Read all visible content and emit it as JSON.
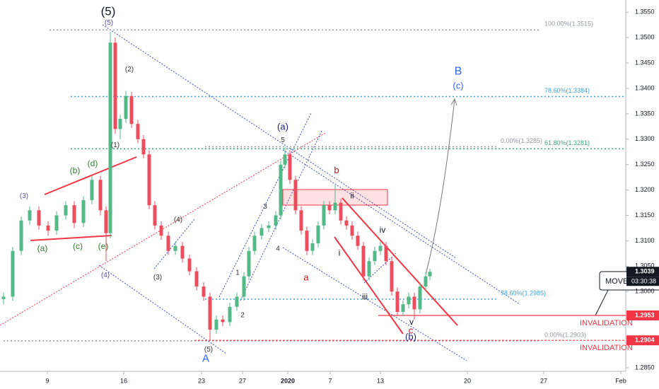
{
  "chart_data": {
    "type": "candlestick",
    "up_color": "#53b987",
    "down_color": "#eb4d5c",
    "xlim": [
      0,
      88.5
    ],
    "ylim": [
      1.2843,
      1.3574
    ],
    "xticks": [
      {
        "value": 6.7,
        "label": "9"
      },
      {
        "value": 17.5,
        "label": "16"
      },
      {
        "value": 28.5,
        "label": "23"
      },
      {
        "value": 34.3,
        "label": "27"
      },
      {
        "value": 40.7,
        "label": "2020"
      },
      {
        "value": 46.7,
        "label": "7"
      },
      {
        "value": 53.8,
        "label": "13"
      },
      {
        "value": 66.1,
        "label": "20"
      },
      {
        "value": 76.9,
        "label": "27"
      },
      {
        "value": 87.8,
        "label": "Feb"
      }
    ],
    "yticks": [
      {
        "value": 1.285,
        "label": "1.2850"
      },
      {
        "value": 1.29,
        "label": "1.2900"
      },
      {
        "value": 1.295,
        "label": "1.2950"
      },
      {
        "value": 1.3,
        "label": "1.3000"
      },
      {
        "value": 1.305,
        "label": "1.3050"
      },
      {
        "value": 1.31,
        "label": "1.3100"
      },
      {
        "value": 1.315,
        "label": "1.3150"
      },
      {
        "value": 1.32,
        "label": "1.3200"
      },
      {
        "value": 1.325,
        "label": "1.3250"
      },
      {
        "value": 1.33,
        "label": "1.3300"
      },
      {
        "value": 1.335,
        "label": "1.3350"
      },
      {
        "value": 1.34,
        "label": "1.3400"
      },
      {
        "value": 1.345,
        "label": "1.3450"
      },
      {
        "value": 1.35,
        "label": "1.3500"
      },
      {
        "value": 1.355,
        "label": "1.3550"
      }
    ],
    "x": [
      0.5,
      1.8,
      3.0,
      4.2,
      5.5,
      6.8,
      8.0,
      9.3,
      10.5,
      11.8,
      13.0,
      14.2,
      15.0,
      15.6,
      16.3,
      17.0,
      17.8,
      18.6,
      19.5,
      20.3,
      21.1,
      21.9,
      22.8,
      23.8,
      24.8,
      25.8,
      26.8,
      27.8,
      28.8,
      29.7,
      30.6,
      31.5,
      32.5,
      33.5,
      34.5,
      35.2,
      36.0,
      37.0,
      38.0,
      39.0,
      39.7,
      40.3,
      41.0,
      41.8,
      42.6,
      43.4,
      44.2,
      45.0,
      45.8,
      46.6,
      47.4,
      48.2,
      49.0,
      49.8,
      50.6,
      51.4,
      52.2,
      53.0,
      53.8,
      54.6,
      55.4,
      56.2,
      57.0,
      57.8,
      58.6,
      59.4,
      60.2,
      60.8
    ],
    "open": [
      1.2985,
      1.299,
      1.308,
      1.314,
      1.316,
      1.313,
      1.312,
      1.315,
      1.317,
      1.3135,
      1.318,
      1.322,
      1.316,
      1.3115,
      1.349,
      1.332,
      1.334,
      1.3385,
      1.333,
      1.33,
      1.327,
      1.317,
      1.313,
      1.311,
      1.308,
      1.309,
      1.3065,
      1.304,
      1.301,
      1.299,
      1.2925,
      1.2945,
      1.294,
      1.297,
      1.299,
      1.303,
      1.308,
      1.311,
      1.3125,
      1.313,
      1.315,
      1.325,
      1.327,
      1.322,
      1.316,
      1.312,
      1.308,
      1.3095,
      1.313,
      1.317,
      1.316,
      1.3175,
      1.314,
      1.313,
      1.311,
      1.309,
      1.303,
      1.306,
      1.308,
      1.309,
      1.306,
      1.3,
      1.296,
      1.2975,
      1.299,
      1.2965,
      1.301,
      1.303
    ],
    "high": [
      1.2998,
      1.3088,
      1.3148,
      1.3168,
      1.3168,
      1.3138,
      1.3158,
      1.3178,
      1.3178,
      1.3188,
      1.3228,
      1.3228,
      1.3168,
      1.3511,
      1.35,
      1.3348,
      1.3395,
      1.3393,
      1.3338,
      1.3308,
      1.3278,
      1.3178,
      1.3138,
      1.3118,
      1.3098,
      1.3098,
      1.3073,
      1.3048,
      1.3018,
      1.2998,
      1.2953,
      1.2953,
      1.2978,
      1.2998,
      1.3038,
      1.3088,
      1.3118,
      1.3133,
      1.3138,
      1.3158,
      1.3258,
      1.3285,
      1.3278,
      1.3228,
      1.3168,
      1.3128,
      1.3103,
      1.3138,
      1.3178,
      1.3178,
      1.321,
      1.3183,
      1.3148,
      1.3138,
      1.3118,
      1.3098,
      1.3068,
      1.3088,
      1.3098,
      1.3098,
      1.3068,
      1.3008,
      1.2983,
      1.2998,
      1.2998,
      1.3018,
      1.3038,
      1.3045
    ],
    "low": [
      1.2975,
      1.2982,
      1.3072,
      1.3132,
      1.3122,
      1.311,
      1.3112,
      1.3142,
      1.3125,
      1.3127,
      1.3172,
      1.315,
      1.306,
      1.3105,
      1.331,
      1.33,
      1.3332,
      1.3322,
      1.3292,
      1.3262,
      1.3162,
      1.3122,
      1.3102,
      1.3072,
      1.3072,
      1.3057,
      1.3032,
      1.3002,
      1.2982,
      1.2905,
      1.2917,
      1.2932,
      1.2932,
      1.2962,
      1.2982,
      1.3022,
      1.3072,
      1.3102,
      1.3117,
      1.3122,
      1.3142,
      1.3242,
      1.3212,
      1.3152,
      1.3112,
      1.3072,
      1.3072,
      1.3087,
      1.3122,
      1.3152,
      1.3152,
      1.3132,
      1.3122,
      1.3102,
      1.3082,
      1.3022,
      1.3022,
      1.3052,
      1.3072,
      1.3052,
      1.2992,
      1.2952,
      1.2952,
      1.2967,
      1.2945,
      1.2957,
      1.3002,
      1.3022
    ],
    "close": [
      1.299,
      1.308,
      1.314,
      1.316,
      1.313,
      1.312,
      1.315,
      1.317,
      1.3135,
      1.318,
      1.322,
      1.316,
      1.3115,
      1.349,
      1.332,
      1.334,
      1.3385,
      1.333,
      1.33,
      1.327,
      1.317,
      1.313,
      1.311,
      1.308,
      1.309,
      1.3065,
      1.304,
      1.301,
      1.299,
      1.2925,
      1.2945,
      1.294,
      1.297,
      1.299,
      1.303,
      1.308,
      1.311,
      1.3125,
      1.313,
      1.315,
      1.325,
      1.327,
      1.322,
      1.316,
      1.312,
      1.308,
      1.3095,
      1.313,
      1.317,
      1.316,
      1.3175,
      1.314,
      1.313,
      1.311,
      1.309,
      1.303,
      1.306,
      1.308,
      1.309,
      1.306,
      1.3,
      1.296,
      1.2975,
      1.299,
      1.2965,
      1.301,
      1.303,
      1.3039
    ],
    "levels": [
      {
        "value": 1.3515,
        "label": "100.00%(1.3515)",
        "color": "#9598a1",
        "x": [
          7,
          76.5
        ],
        "label_x": 77
      },
      {
        "value": 1.3384,
        "label": "78.60%(1.3384)",
        "color": "#3ba8dc",
        "x": [
          10,
          88.5
        ],
        "label_x": 77
      },
      {
        "value": 1.3281,
        "label": "61.80%(1.3281)",
        "color": "#3aa57a",
        "x": [
          10,
          88.5
        ],
        "label_x": 77
      },
      {
        "value": 1.3285,
        "label": "0.00%(1.3285)",
        "color": "#9598a1",
        "x": [
          29,
          70.5
        ],
        "label_x": 70.8
      },
      {
        "value": 1.2985,
        "label": "78.60%(1.2985)",
        "color": "#3ba8dc",
        "x": [
          29,
          70.5
        ],
        "label_x": 70.8
      },
      {
        "value": 1.2903,
        "label": "0.00%(1.2903)",
        "color": "#9598a1",
        "x": [
          0.5,
          76.5
        ],
        "label_x": 77
      }
    ],
    "stops": [
      {
        "value": 1.2953,
        "label": "INVALIDATION",
        "color": "#f23645",
        "dash": false,
        "x": [
          53.5,
          88.5
        ],
        "label_x": 82
      },
      {
        "value": 1.2904,
        "label": "INVALIDATION",
        "color": "#f23645",
        "dash": true,
        "x": [
          27.5,
          88.5
        ],
        "label_x": 82
      }
    ],
    "price_tags": [
      {
        "value": 1.3039,
        "color": "#131722"
      },
      {
        "value": 1.2953,
        "color": "#f23645"
      },
      {
        "value": 1.2904,
        "color": "#f23645"
      }
    ],
    "countdown": "03:30:38",
    "note": "MOVE S",
    "annotations": [
      {
        "text": "(5)",
        "x": 15.3,
        "y": 1.355,
        "color": "#131722",
        "size": 17
      },
      {
        "text": "(5)",
        "x": 15.4,
        "y": 1.3529,
        "color": "#5b4e9e",
        "size": 10
      },
      {
        "text": "(2)",
        "x": 18.3,
        "y": 1.3437,
        "color": "#333333",
        "size": 10
      },
      {
        "text": "(1)",
        "x": 16.3,
        "y": 1.3288,
        "color": "#333333",
        "size": 10
      },
      {
        "text": "(3)",
        "x": 3.4,
        "y": 1.3188,
        "color": "#5b4e9e",
        "size": 10
      },
      {
        "text": "(b)",
        "x": 10.6,
        "y": 1.3237,
        "color": "#2e7d32",
        "size": 12
      },
      {
        "text": "(d)",
        "x": 13.1,
        "y": 1.3251,
        "color": "#2e7d32",
        "size": 12
      },
      {
        "text": "(a)",
        "x": 6.0,
        "y": 1.3084,
        "color": "#2e7d32",
        "size": 12
      },
      {
        "text": "(c)",
        "x": 11.0,
        "y": 1.3088,
        "color": "#2e7d32",
        "size": 12
      },
      {
        "text": "(e)",
        "x": 14.6,
        "y": 1.3088,
        "color": "#2e7d32",
        "size": 12
      },
      {
        "text": "(4)",
        "x": 14.9,
        "y": 1.3032,
        "color": "#5b4e9e",
        "size": 10
      },
      {
        "text": "(4)",
        "x": 25.2,
        "y": 1.3141,
        "color": "#333333",
        "size": 10
      },
      {
        "text": "(3)",
        "x": 22.3,
        "y": 1.3028,
        "color": "#333333",
        "size": 10
      },
      {
        "text": "(5)",
        "x": 29.5,
        "y": 1.2886,
        "color": "#333333",
        "size": 10
      },
      {
        "text": "A",
        "x": 29.1,
        "y": 1.2867,
        "color": "#2962ff",
        "size": 15
      },
      {
        "text": "1",
        "x": 33.6,
        "y": 1.3037,
        "color": "#333333",
        "size": 10
      },
      {
        "text": "2",
        "x": 34.3,
        "y": 1.2953,
        "color": "#333333",
        "size": 10
      },
      {
        "text": "3",
        "x": 37.5,
        "y": 1.3167,
        "color": "#333333",
        "size": 10
      },
      {
        "text": "4",
        "x": 39.3,
        "y": 1.3084,
        "color": "#333333",
        "size": 10
      },
      {
        "text": "5",
        "x": 40.0,
        "y": 1.3298,
        "color": "#333333",
        "size": 10
      },
      {
        "text": "(a)",
        "x": 40.0,
        "y": 1.3323,
        "color": "#1a237e",
        "size": 13
      },
      {
        "text": "b",
        "x": 47.6,
        "y": 1.3238,
        "color": "#b71c1c",
        "size": 13
      },
      {
        "text": "a",
        "x": 43.3,
        "y": 1.3027,
        "color": "#b71c1c",
        "size": 13
      },
      {
        "text": "ii",
        "x": 49.8,
        "y": 1.3188,
        "color": "#131722",
        "size": 12
      },
      {
        "text": "i",
        "x": 48.0,
        "y": 1.3075,
        "color": "#131722",
        "size": 12
      },
      {
        "text": "iii",
        "x": 51.6,
        "y": 1.2989,
        "color": "#131722",
        "size": 12
      },
      {
        "text": "iv",
        "x": 54.1,
        "y": 1.312,
        "color": "#131722",
        "size": 12
      },
      {
        "text": "v",
        "x": 58.2,
        "y": 1.2939,
        "color": "#131722",
        "size": 12
      },
      {
        "text": "c",
        "x": 58.1,
        "y": 1.2922,
        "color": "#b71c1c",
        "size": 13
      },
      {
        "text": "(b)",
        "x": 58.1,
        "y": 1.291,
        "color": "#1a237e",
        "size": 13
      },
      {
        "text": "B",
        "x": 64.8,
        "y": 1.3433,
        "color": "#2962ff",
        "size": 16
      },
      {
        "text": "(c)",
        "x": 64.8,
        "y": 1.3404,
        "color": "#2962ff",
        "size": 13
      }
    ]
  }
}
